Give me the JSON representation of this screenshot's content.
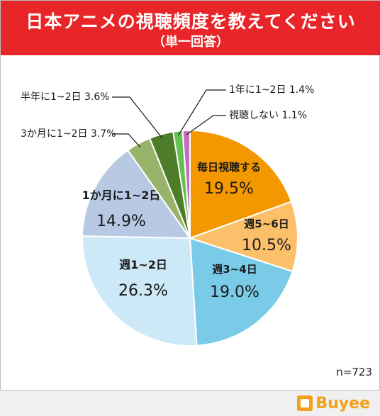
{
  "header": {
    "title": "日本アニメの視聴頻度を教えてください",
    "subtitle": "（単一回答）"
  },
  "n_label": "n=723",
  "brand": {
    "name": "Buyee",
    "icon": "buyee-box-icon"
  },
  "chart_data": {
    "type": "pie",
    "title": "日本アニメの視聴頻度を教えてください",
    "subtitle": "（単一回答）",
    "sample_size": "n=723",
    "slices": [
      {
        "label": "毎日視聴する",
        "value": 19.5,
        "display": "19.5%",
        "color": "#f39800"
      },
      {
        "label": "週5~6日",
        "value": 10.5,
        "display": "10.5%",
        "color": "#fdc06a"
      },
      {
        "label": "週3~4日",
        "value": 19.0,
        "display": "19.0%",
        "color": "#79cbe8"
      },
      {
        "label": "週1~2日",
        "value": 26.3,
        "display": "26.3%",
        "color": "#cde9f7"
      },
      {
        "label": "1か月に1~2日",
        "value": 14.9,
        "display": "14.9%",
        "color": "#b7c9e3"
      },
      {
        "label": "3か月に1~2日",
        "value": 3.7,
        "display": "3.7%",
        "color": "#9ab36b"
      },
      {
        "label": "半年に1~2日",
        "value": 3.6,
        "display": "3.6%",
        "color": "#4e7d2a"
      },
      {
        "label": "1年に1~2日",
        "value": 1.4,
        "display": "1.4%",
        "color": "#62c150"
      },
      {
        "label": "視聴しない",
        "value": 1.1,
        "display": "1.1%",
        "color": "#c86cc0"
      }
    ]
  }
}
